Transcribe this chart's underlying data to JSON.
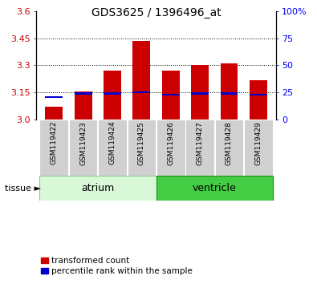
{
  "title": "GDS3625 / 1396496_at",
  "samples": [
    "GSM119422",
    "GSM119423",
    "GSM119424",
    "GSM119425",
    "GSM119426",
    "GSM119427",
    "GSM119428",
    "GSM119429"
  ],
  "red_values": [
    3.07,
    3.155,
    3.27,
    3.435,
    3.272,
    3.3,
    3.31,
    3.215
  ],
  "blue_values": [
    3.122,
    3.143,
    3.143,
    3.15,
    3.138,
    3.143,
    3.143,
    3.138
  ],
  "y_min": 3.0,
  "y_max": 3.6,
  "y_ticks_left": [
    3.0,
    3.15,
    3.3,
    3.45,
    3.6
  ],
  "y_ticks_right_labels": [
    "0",
    "25",
    "50",
    "75",
    "100%"
  ],
  "y_ticks_right_positions": [
    3.0,
    3.15,
    3.3,
    3.45,
    3.6
  ],
  "bar_width": 0.6,
  "red_color": "#cc0000",
  "blue_color": "#0000cc",
  "atrium_color_light": "#d8f8d8",
  "atrium_color_border": "#88cc88",
  "ventricle_color": "#44cc44",
  "ventricle_color_border": "#228822",
  "gray_box_color": "#d0d0d0",
  "legend_red_label": "transformed count",
  "legend_blue_label": "percentile rank within the sample",
  "blue_bar_height": 0.01,
  "dotted_gridline_color": "#000000",
  "title_fontsize": 10,
  "tick_fontsize": 8,
  "sample_fontsize": 6.5,
  "tissue_fontsize": 9,
  "legend_fontsize": 7.5
}
